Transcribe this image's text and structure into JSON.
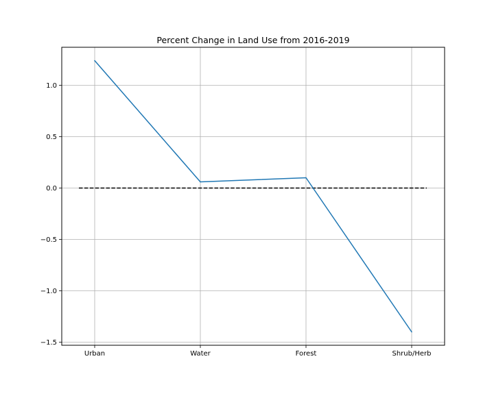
{
  "chart_data": {
    "type": "line",
    "title": "Percent Change in Land Use from 2016-2019",
    "xlabel": "",
    "ylabel": "",
    "categories": [
      "Urban",
      "Water",
      "Forest",
      "Shrub/Herb"
    ],
    "series": [
      {
        "values": [
          1.24,
          0.06,
          0.1,
          -1.4
        ]
      }
    ],
    "reference_line": {
      "y": 0.0,
      "style": "dashed",
      "color": "#000000"
    },
    "ylim": [
      -1.53,
      1.37
    ],
    "yticks": [
      -1.5,
      -1.0,
      -0.5,
      0.0,
      0.5,
      1.0
    ],
    "ytick_labels": [
      "−1.5",
      "−1.0",
      "−0.5",
      "0.0",
      "0.5",
      "1.0"
    ],
    "grid": true,
    "colors": {
      "series": "#1f77b4",
      "grid": "#b0b0b0",
      "axes": "#000000"
    }
  }
}
